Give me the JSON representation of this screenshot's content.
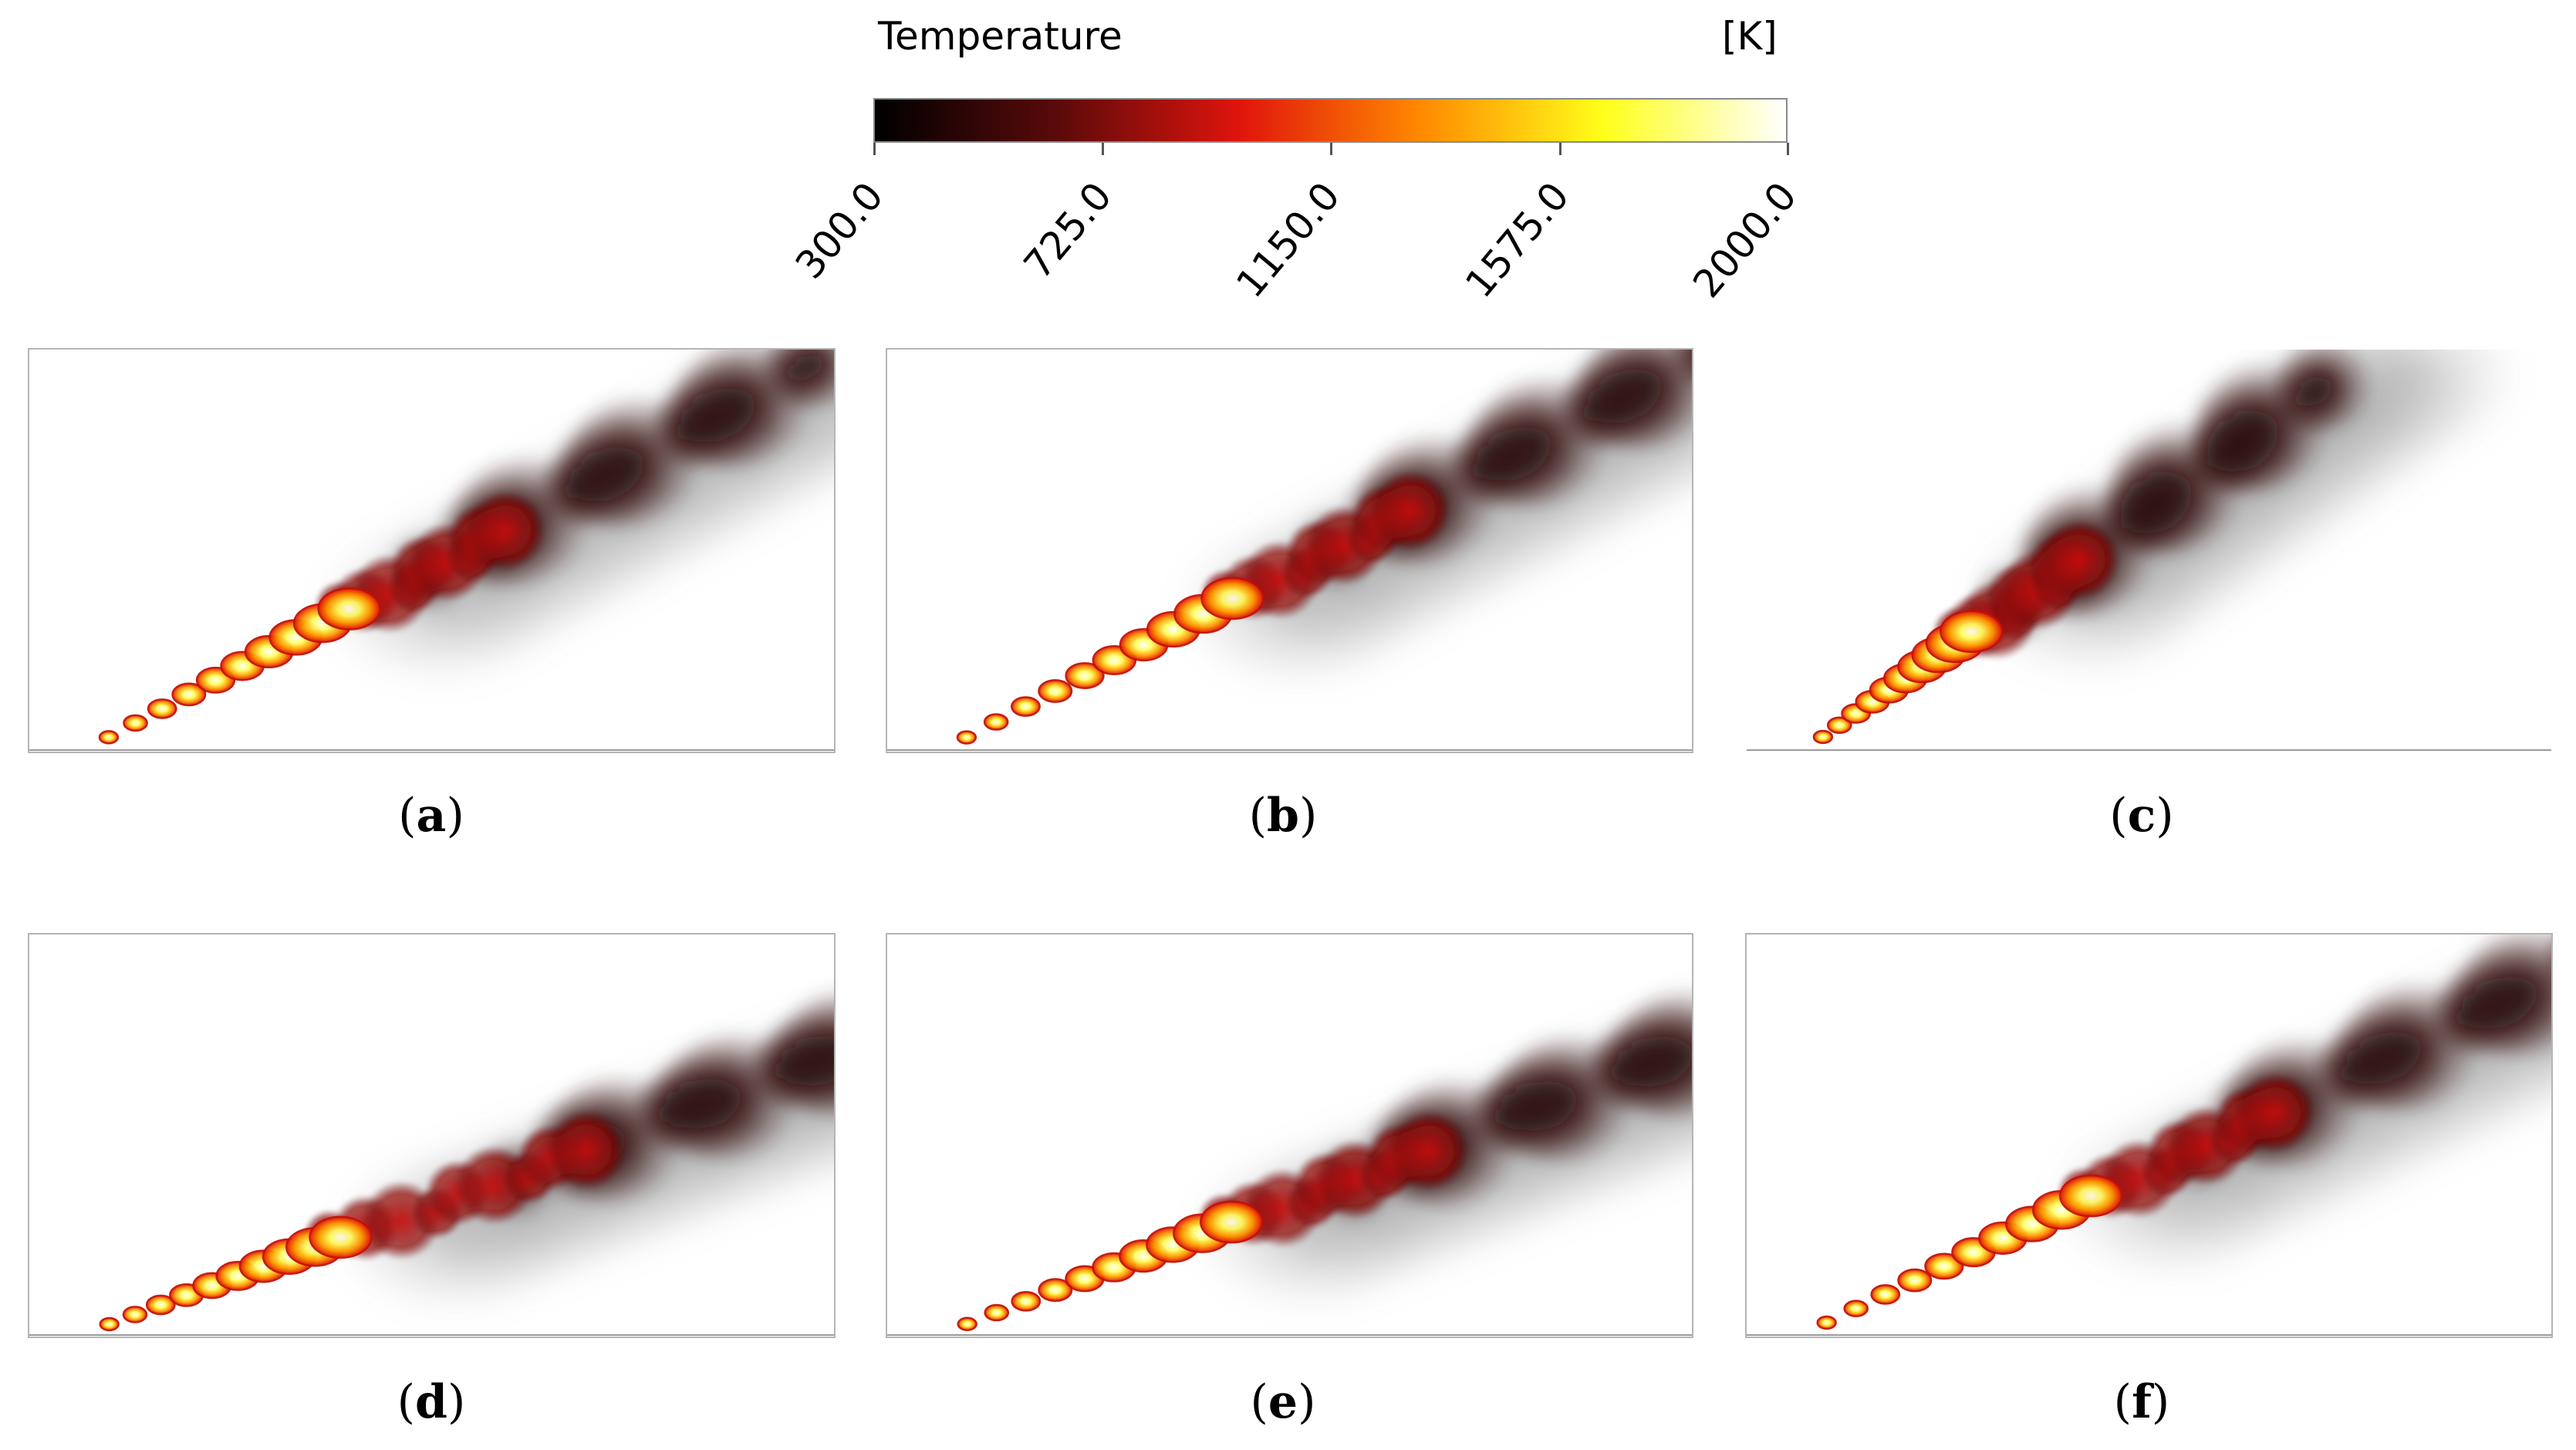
{
  "colorbar": {
    "title": "Temperature",
    "unit": "[K]",
    "ticks": [
      "300.0",
      "725.0",
      "1150.0",
      "1575.0",
      "2000.0"
    ],
    "colors": [
      "#000000",
      "#5a0a0a",
      "#e0140c",
      "#ff8a00",
      "#ffff1a",
      "#ffffff"
    ]
  },
  "panels": [
    {
      "label": "a"
    },
    {
      "label": "b"
    },
    {
      "label": "c"
    },
    {
      "label": "d"
    },
    {
      "label": "e"
    },
    {
      "label": "f"
    }
  ]
}
